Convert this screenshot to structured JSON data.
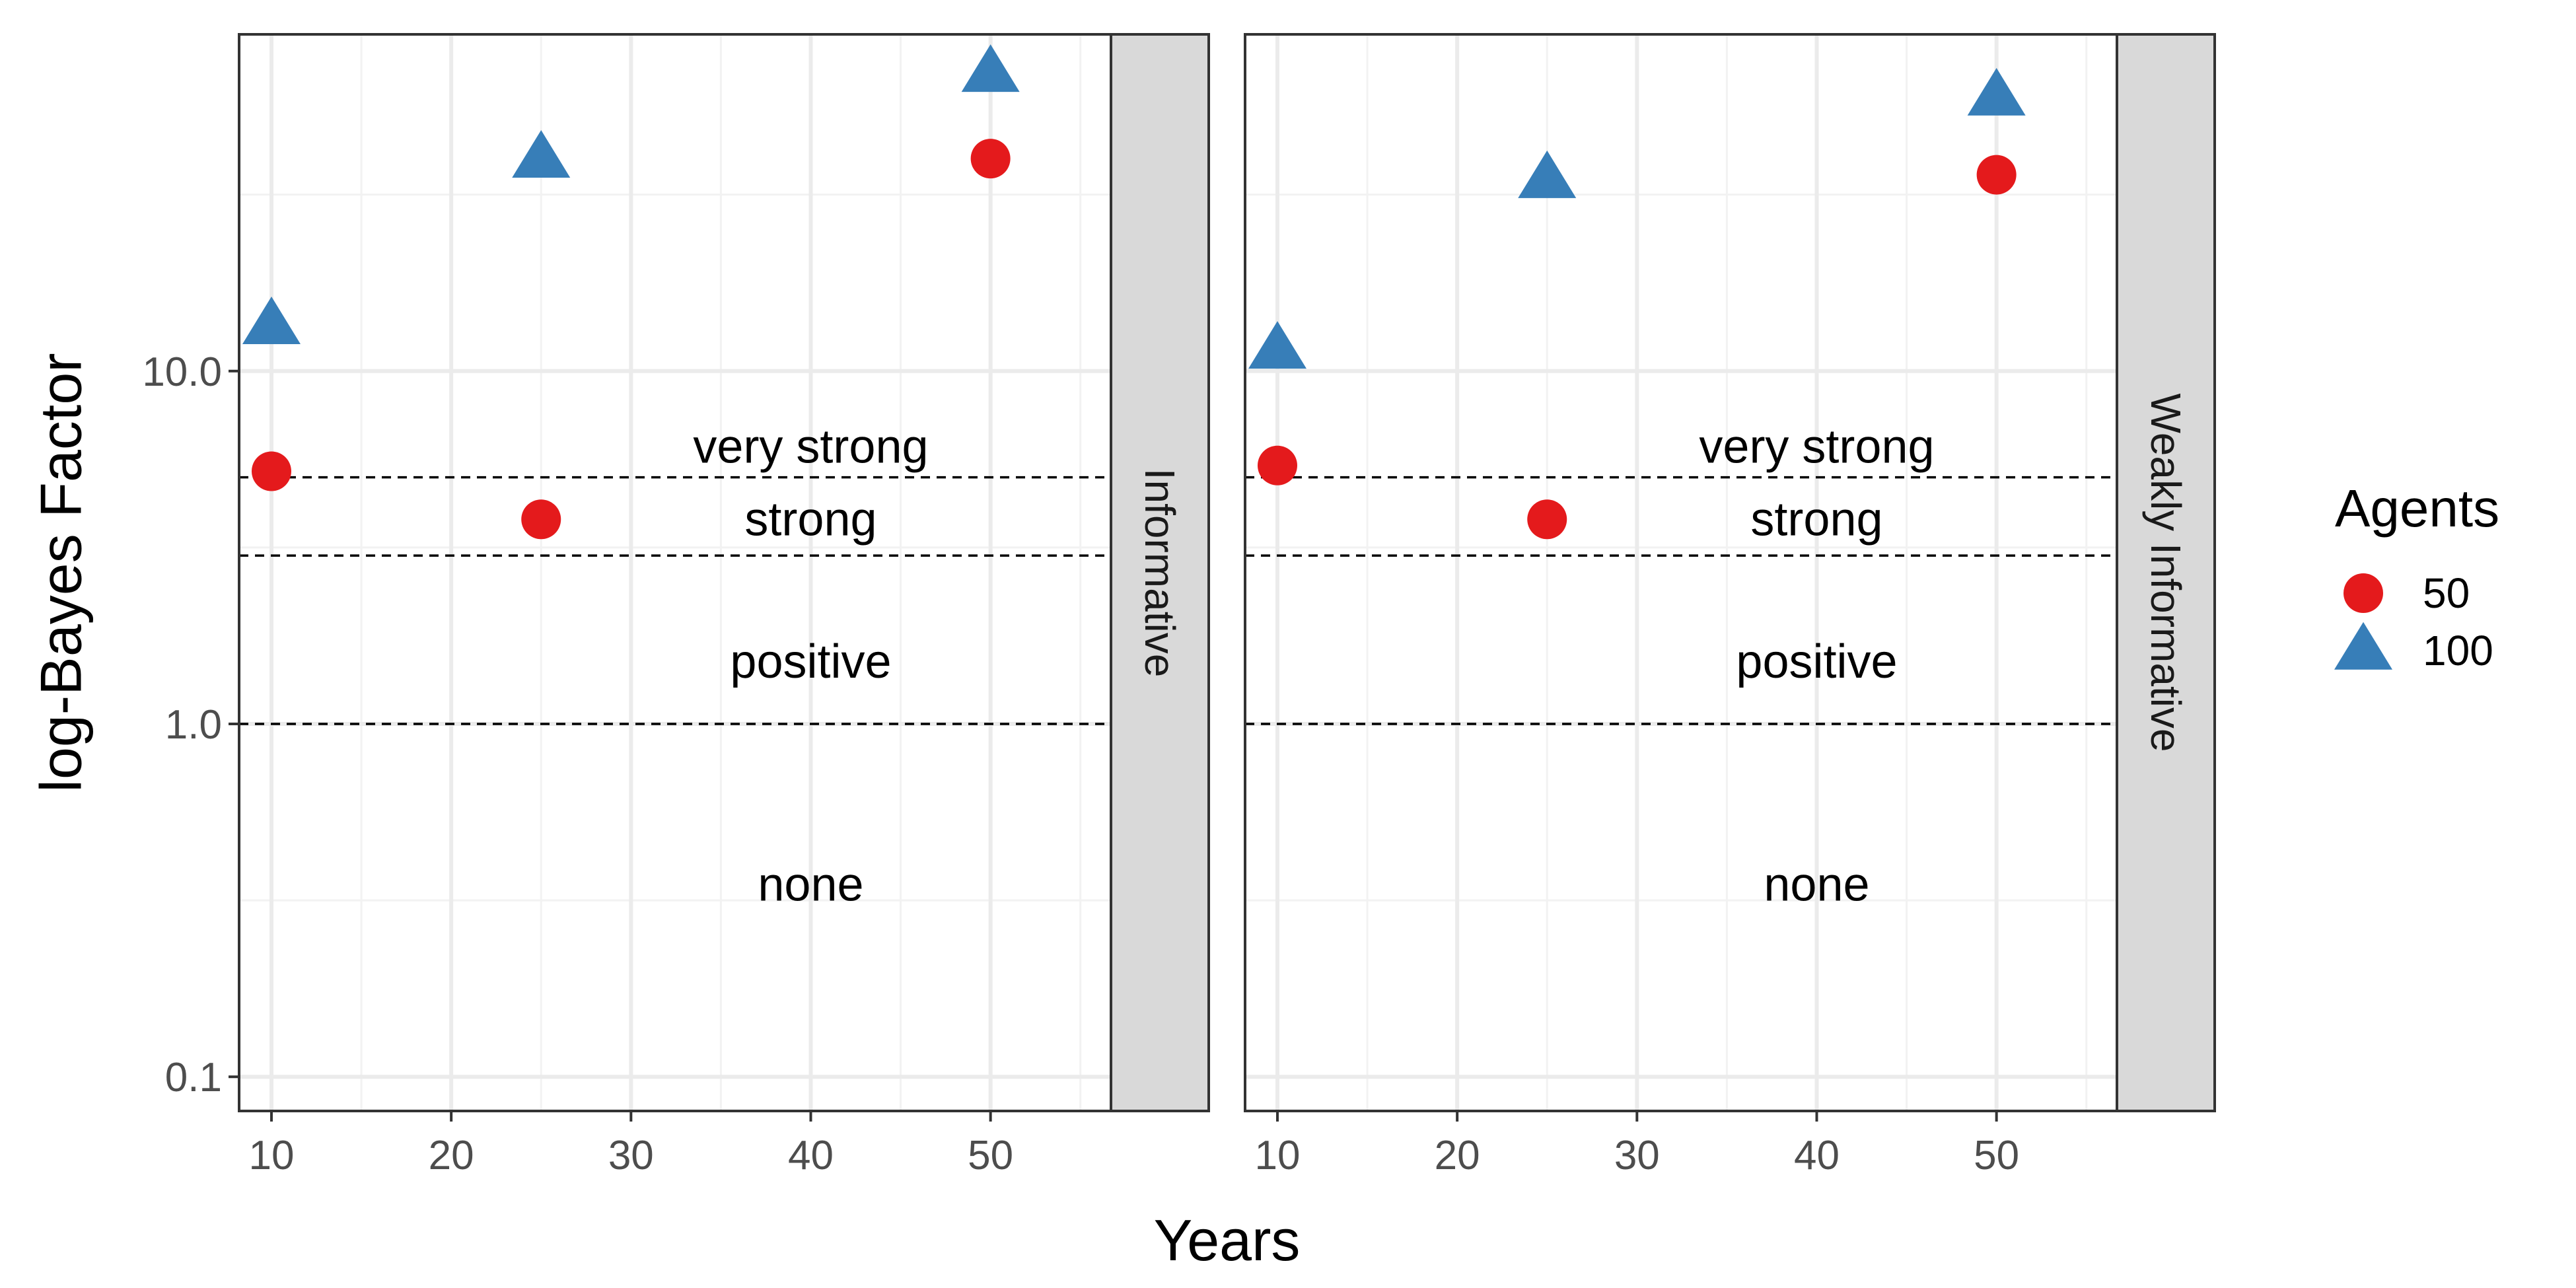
{
  "chart_data": {
    "type": "scatter",
    "xlabel": "Years",
    "ylabel": "log-Bayes Factor",
    "y_scale": "log10",
    "xlim": [
      8.2,
      56.7
    ],
    "ylim": [
      0.08,
      90
    ],
    "x_ticks": [
      10,
      20,
      30,
      40,
      50
    ],
    "x_tick_labels": [
      "10",
      "20",
      "30",
      "40",
      "50"
    ],
    "y_ticks": [
      0.1,
      1.0,
      10.0
    ],
    "y_tick_labels": [
      "0.1",
      "1.0",
      "10.0"
    ],
    "grid": true,
    "legend": {
      "title": "Agents",
      "position": "right",
      "entries": [
        {
          "label": "50",
          "shape": "circle",
          "color": "#e41a1c"
        },
        {
          "label": "100",
          "shape": "triangle",
          "color": "#377eb8"
        }
      ]
    },
    "thresholds": [
      1,
      3,
      5
    ],
    "region_labels": [
      {
        "text": "very strong",
        "y": 6.1
      },
      {
        "text": "strong",
        "y": 3.8
      },
      {
        "text": "positive",
        "y": 1.5
      },
      {
        "text": "none",
        "y": 0.35
      }
    ],
    "panels": [
      {
        "strip": "Informative",
        "series": [
          {
            "name": "50",
            "x": [
              10,
              25,
              50
            ],
            "y": [
              5.2,
              3.8,
              40
            ]
          },
          {
            "name": "100",
            "x": [
              10,
              25,
              50
            ],
            "y": [
              13.5,
              40,
              70
            ]
          }
        ]
      },
      {
        "strip": "Weakly Informative",
        "series": [
          {
            "name": "50",
            "x": [
              10,
              25,
              50
            ],
            "y": [
              5.4,
              3.8,
              36
            ]
          },
          {
            "name": "100",
            "x": [
              10,
              25,
              50
            ],
            "y": [
              11.5,
              35,
              60
            ]
          }
        ]
      }
    ]
  }
}
